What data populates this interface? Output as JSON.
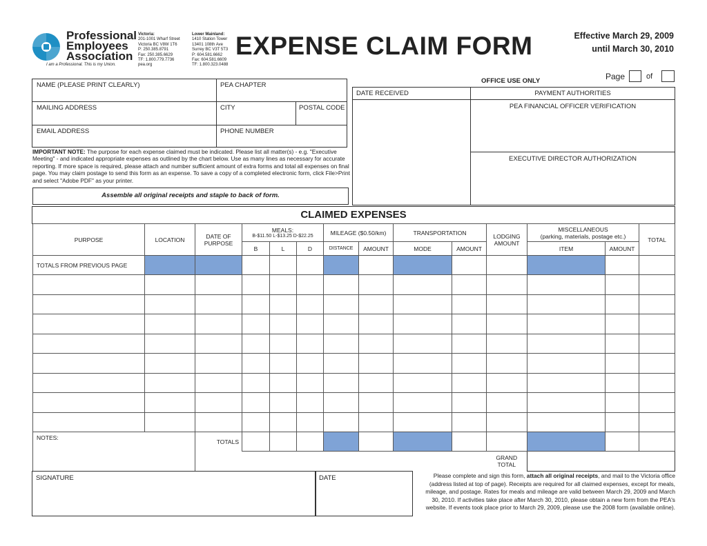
{
  "org": {
    "name_lines": [
      "Professional",
      "Employees",
      "Association"
    ],
    "tagline": "I am a Professional. This is my Union.",
    "victoria": [
      "Victoria:",
      "201-1001 Wharf Street",
      "Victoria BC V8W 1T6",
      "P: 250.385.8791",
      "Fax: 250.385.6629",
      "TF: 1.800.779.7736",
      "pea.org"
    ],
    "lower_mainland": [
      "Lower Mainland:",
      "1410 Station Tower",
      "13401 108th Ave",
      "Surrey BC V3T 5T3",
      "P: 604.581.6662",
      "Fax: 604.581.6609",
      "TF: 1.800.323.0488"
    ]
  },
  "title": "EXPENSE CLAIM FORM",
  "effective": [
    "Effective March 29, 2009",
    "until March 30, 2010"
  ],
  "page": {
    "label": "Page",
    "of": "of"
  },
  "fields": {
    "name": "NAME (PLEASE PRINT CLEARLY)",
    "chapter": "PEA CHAPTER",
    "mailing": "MAILING ADDRESS",
    "city": "CITY",
    "postal": "POSTAL CODE",
    "email": "EMAIL ADDRESS",
    "phone": "PHONE NUMBER"
  },
  "office": {
    "title": "OFFICE USE ONLY",
    "date_received": "DATE RECEIVED",
    "payment": "PAYMENT AUTHORITIES",
    "verification": "PEA FINANCIAL OFFICER VERIFICATION",
    "authorization": "EXECUTIVE DIRECTOR AUTHORIZATION"
  },
  "note": {
    "bold": "IMPORTANT NOTE:",
    "text": " The purpose for each expense claimed must be indicated. Please list all matter(s) - e.g. \"Executive Meeting\" - and indicated appropriate expenses as outlined by the chart below. Use as many lines as necessary for accurate reporting. If more space is required, please attach and number sufficient amount of extra forms and total all expenses on final page. You may claim postage to send this form as an expense. To save a copy of a completed electronic form, click File>Print and select \"Adobe PDF\" as your printer.",
    "assemble": "Assemble all original receipts and staple to back of form."
  },
  "table": {
    "title": "CLAIMED EXPENSES",
    "purpose": "PURPOSE",
    "location": "LOCATION",
    "date": "DATE OF PURPOSE",
    "meals": "MEALS:",
    "meal_rates": "B-$11.50 L-$13.25 D-$22.25",
    "mileage": "MILEAGE ($0.50/km)",
    "transportation": "TRANSPORTATION",
    "lodging": "LODGING AMOUNT",
    "misc": "MISCELLANEOUS",
    "misc_sub": "(parking, materials, postage etc.)",
    "total": "TOTAL",
    "b": "B",
    "l": "L",
    "d": "D",
    "distance": "DISTANCE",
    "amount": "AMOUNT",
    "mode": "MODE",
    "item": "ITEM",
    "prev": "TOTALS FROM PREVIOUS PAGE",
    "notes": "NOTES:",
    "totals": "TOTALS",
    "grand": "GRAND TOTAL"
  },
  "signature": "SIGNATURE",
  "date": "DATE",
  "footer": {
    "pre": "Please complete and sign this form, ",
    "bold": "attach all original receipts",
    "post": ", and mail to the Victoria office (address listed at top of page). Receipts are required for all claimed expenses, except for meals, mileage, and postage. Rates for meals and mileage are valid between  March 29, 2009 and March 30, 2010. If activities take place after March 30, 2010, please obtain a new form from the PEA's website. If events took place prior to March 29, 2009, please use the 2008 form (available online)."
  },
  "colors": {
    "blue": "#7fa3d6",
    "logo": "#1e8fc4"
  }
}
